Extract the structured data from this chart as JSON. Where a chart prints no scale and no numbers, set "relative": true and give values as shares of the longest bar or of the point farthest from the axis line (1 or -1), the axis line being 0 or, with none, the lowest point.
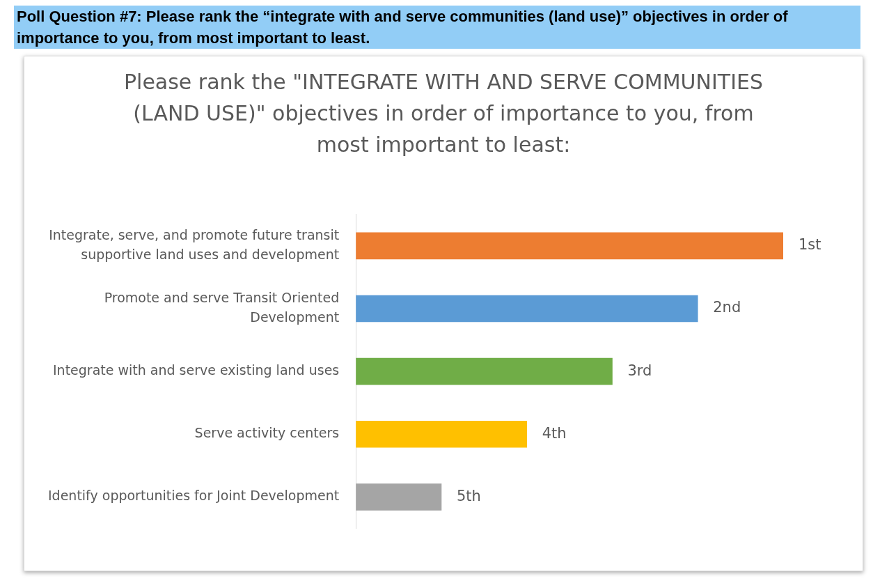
{
  "chart_data": {
    "type": "bar",
    "orientation": "horizontal",
    "relative": true,
    "title": "Poll Question #7: Please rank the “integrate with and serve communities (land use)” objectives in order of importance to you, from most important to least.",
    "subtitle": "Please rank the \"INTEGRATE WITH AND SERVE COMMUNITIES (LAND USE)\" objectives in order of importance to you, from most important to least:",
    "categories": [
      "Integrate, serve, and promote future transit supportive land uses and development",
      "Promote and serve Transit Oriented Development",
      "Integrate with and serve existing land uses",
      "Serve activity centers",
      "Identify opportunities for Joint Development"
    ],
    "values": [
      1,
      0.8,
      0.6,
      0.4,
      0.2
    ],
    "colors": [
      "#ed7d31",
      "#5b9bd5",
      "#70ad47",
      "#ffc000",
      "#a5a5a5"
    ],
    "annotations": [
      {
        "text": "1st",
        "x": 1,
        "y": "Integrate, serve, and promote future transit supportive land uses and development"
      },
      {
        "text": "2nd",
        "x": 0.8,
        "y": "Promote and serve Transit Oriented Development"
      },
      {
        "text": "3rd",
        "x": 0.6,
        "y": "Integrate with and serve existing land uses"
      },
      {
        "text": "4th",
        "x": 0.4,
        "y": "Serve activity centers"
      },
      {
        "text": "5th",
        "x": 0.2,
        "y": "Identify opportunities for Joint Development"
      }
    ]
  }
}
